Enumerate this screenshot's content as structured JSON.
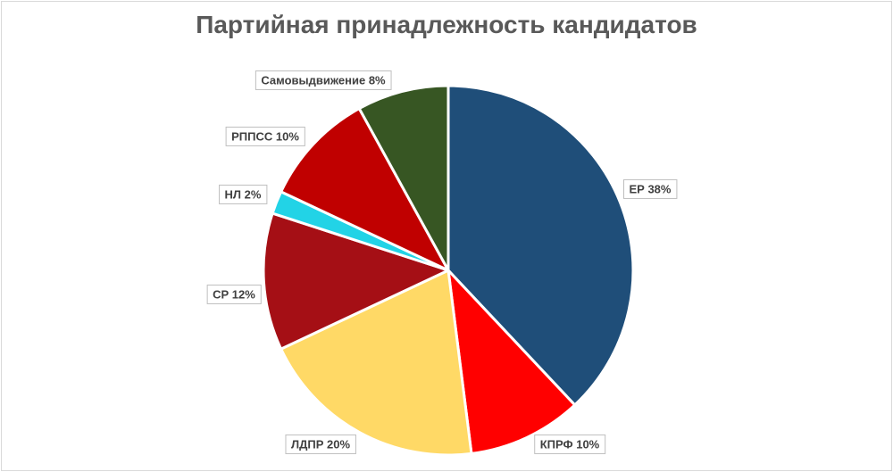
{
  "chart_data": {
    "type": "pie",
    "title": "Партийная принадлежность кандидатов",
    "legend": "none",
    "slices": [
      {
        "label": "ЕР",
        "value": 38,
        "pct_label": "38%",
        "color": "#1f4e79"
      },
      {
        "label": "КПРФ",
        "value": 10,
        "pct_label": "10%",
        "color": "#ff0000"
      },
      {
        "label": "ЛДПР",
        "value": 20,
        "pct_label": "20%",
        "color": "#ffd966"
      },
      {
        "label": "СР",
        "value": 12,
        "pct_label": "12%",
        "color": "#a50f15"
      },
      {
        "label": "НЛ",
        "value": 2,
        "pct_label": "2%",
        "color": "#22d3e6"
      },
      {
        "label": "РППСС",
        "value": 10,
        "pct_label": "10%",
        "color": "#c00000"
      },
      {
        "label": "Самовыдвижение",
        "value": 8,
        "pct_label": "8%",
        "color": "#375623"
      }
    ]
  }
}
